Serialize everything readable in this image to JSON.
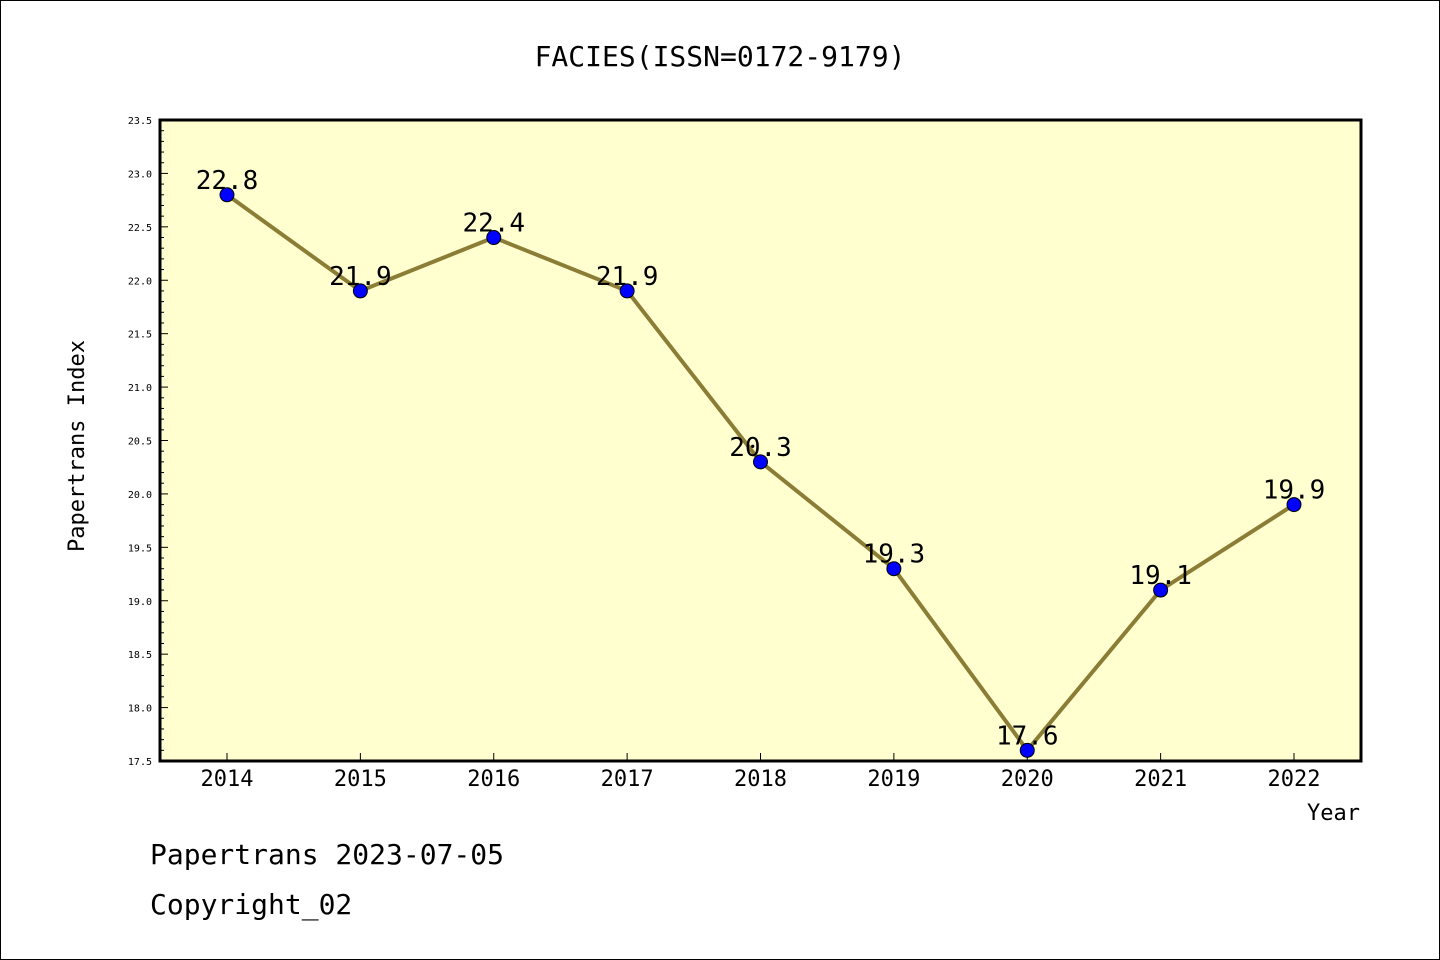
{
  "chart_data": {
    "type": "line",
    "title": "FACIES(ISSN=0172-9179)",
    "xlabel": "Year",
    "ylabel": "Papertrans Index",
    "categories": [
      "2014",
      "2015",
      "2016",
      "2017",
      "2018",
      "2019",
      "2020",
      "2021",
      "2022"
    ],
    "series": [
      {
        "values": [
          22.8,
          21.9,
          22.4,
          21.9,
          20.3,
          19.3,
          17.6,
          19.1,
          19.9
        ],
        "data_labels": [
          "22.8",
          "21.9",
          "22.4",
          "21.9",
          "20.3",
          "19.3",
          "17.6",
          "19.1",
          "19.9"
        ]
      }
    ],
    "ylim": [
      17.5,
      23.5
    ],
    "yticks": [
      "17.5",
      "18.0",
      "18.5",
      "19.0",
      "19.5",
      "20.0",
      "20.5",
      "21.0",
      "21.5",
      "22.0",
      "22.5",
      "23.0",
      "23.5"
    ],
    "grid": false,
    "legend": "none",
    "colors": {
      "plot_background": "#ffffd0",
      "line": "#8b7d35",
      "marker": "#0000ff"
    }
  },
  "footer": {
    "line1": "Papertrans 2023-07-05",
    "line2": "Copyright_02"
  }
}
